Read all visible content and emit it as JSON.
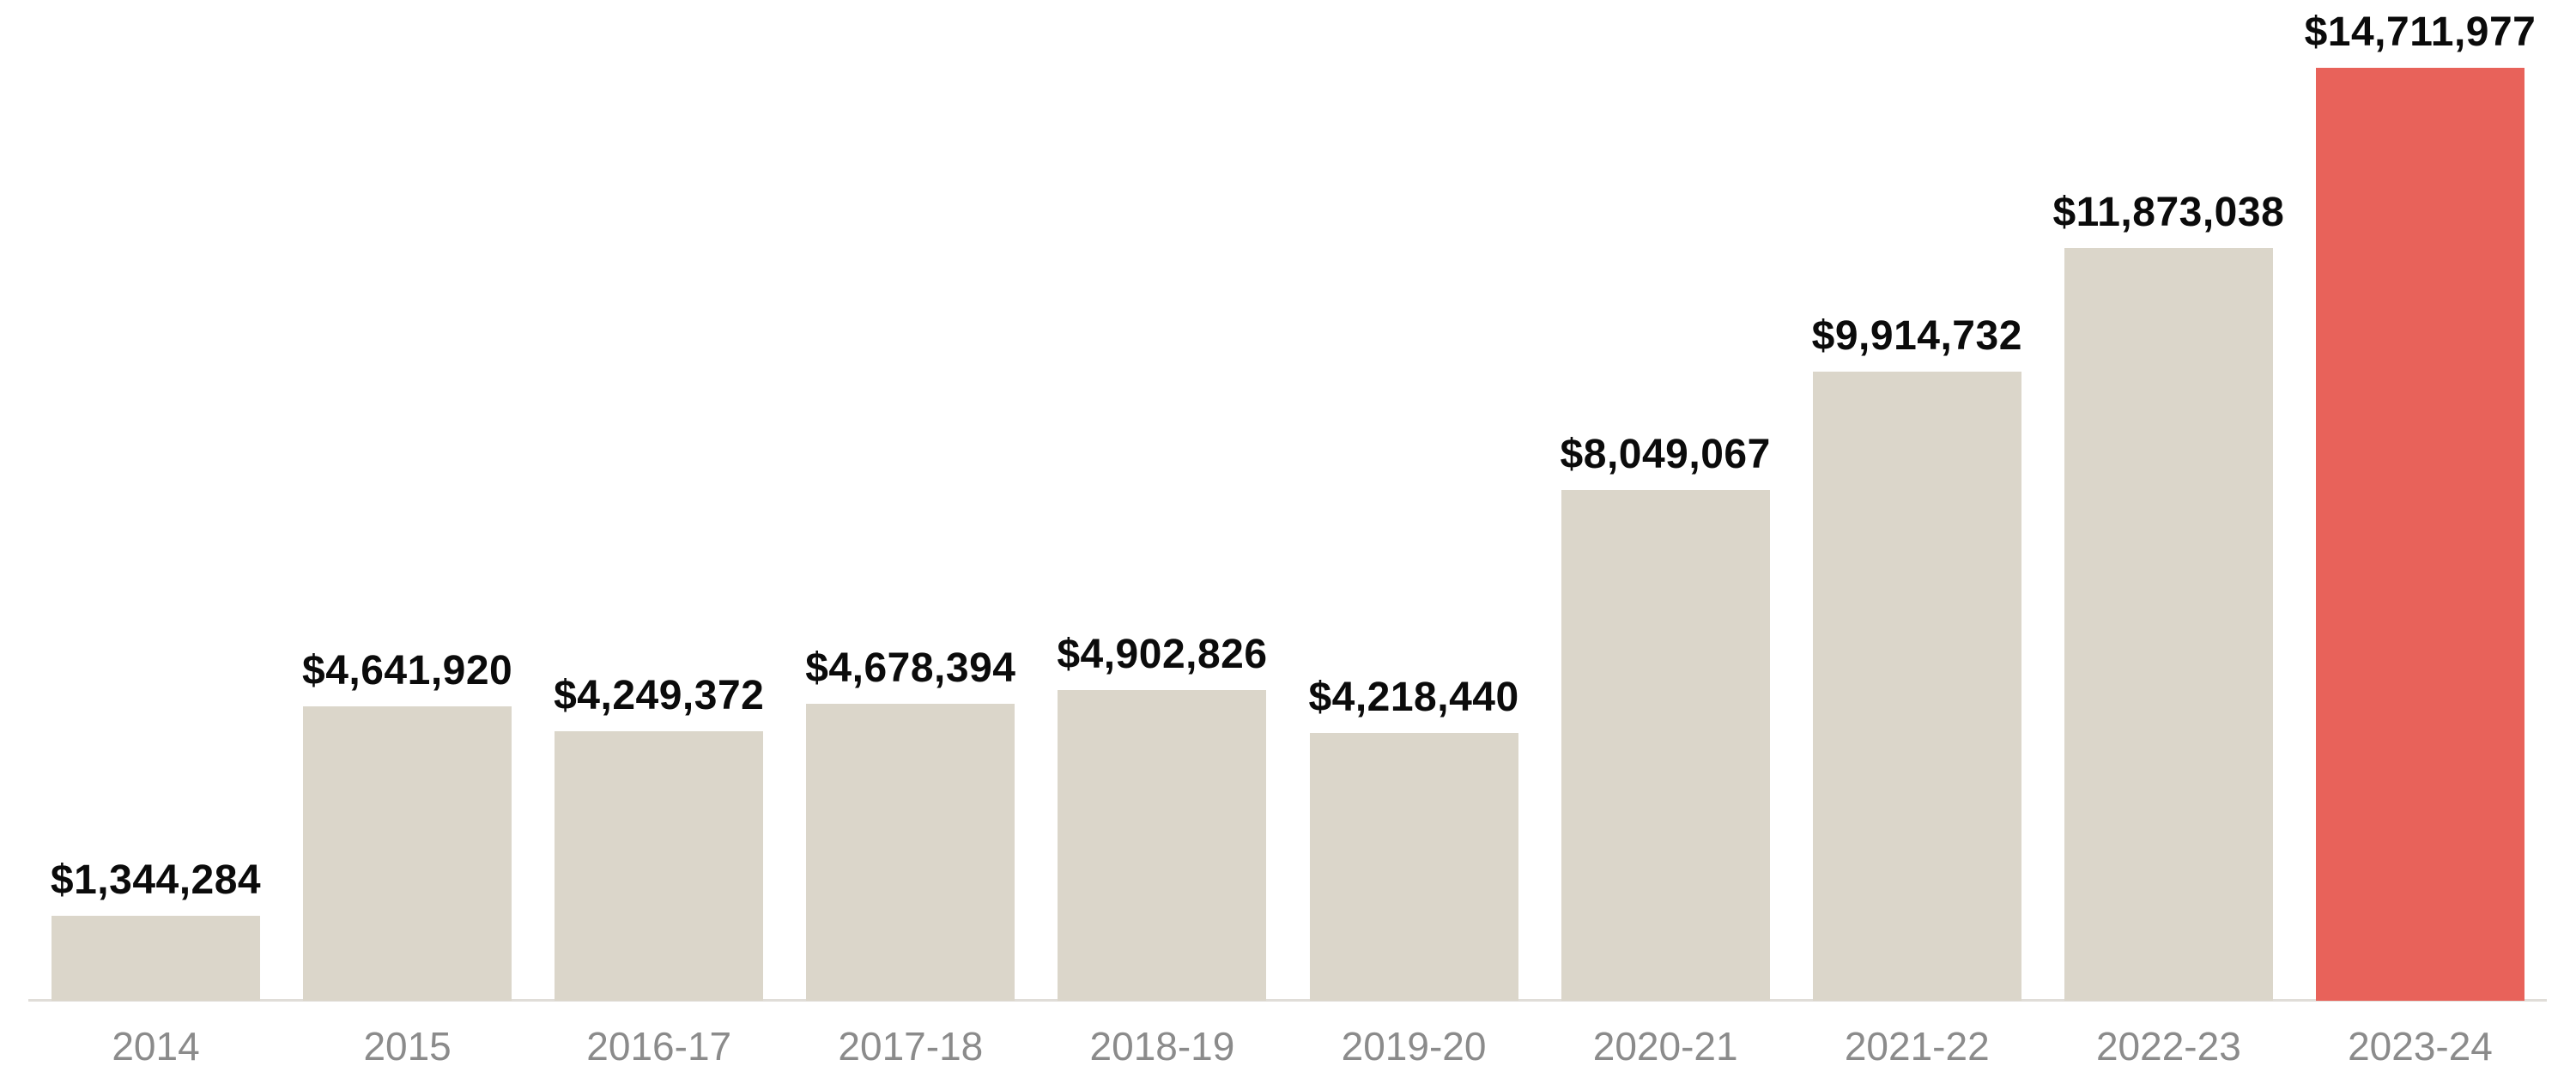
{
  "page": {
    "background": "#ffffff"
  },
  "chart_data": {
    "type": "bar",
    "title": "",
    "xlabel": "",
    "ylabel": "",
    "categories": [
      "2014",
      "2015",
      "2016-17",
      "2017-18",
      "2018-19",
      "2019-20",
      "2020-21",
      "2021-22",
      "2022-23",
      "2023-24"
    ],
    "values": [
      1344284,
      4641920,
      4249372,
      4678394,
      4902826,
      4218440,
      8049067,
      9914732,
      11873038,
      14711977
    ],
    "value_labels": [
      "$1,344,284",
      "$4,641,920",
      "$4,249,372",
      "$4,678,394",
      "$4,902,826",
      "$4,218,440",
      "$8,049,067",
      "$9,914,732",
      "$11,873,038",
      "$14,711,977"
    ],
    "ylim": [
      0,
      14711977
    ],
    "grid": false,
    "legend": "none",
    "highlight_index": 9,
    "bar_color_default": "#dbd6ca",
    "bar_color_highlight": "#e8625a",
    "axis_line_color": "#e0ddd8",
    "value_label_color": "#0b0b0b",
    "tick_label_color": "#8b8b8b"
  }
}
